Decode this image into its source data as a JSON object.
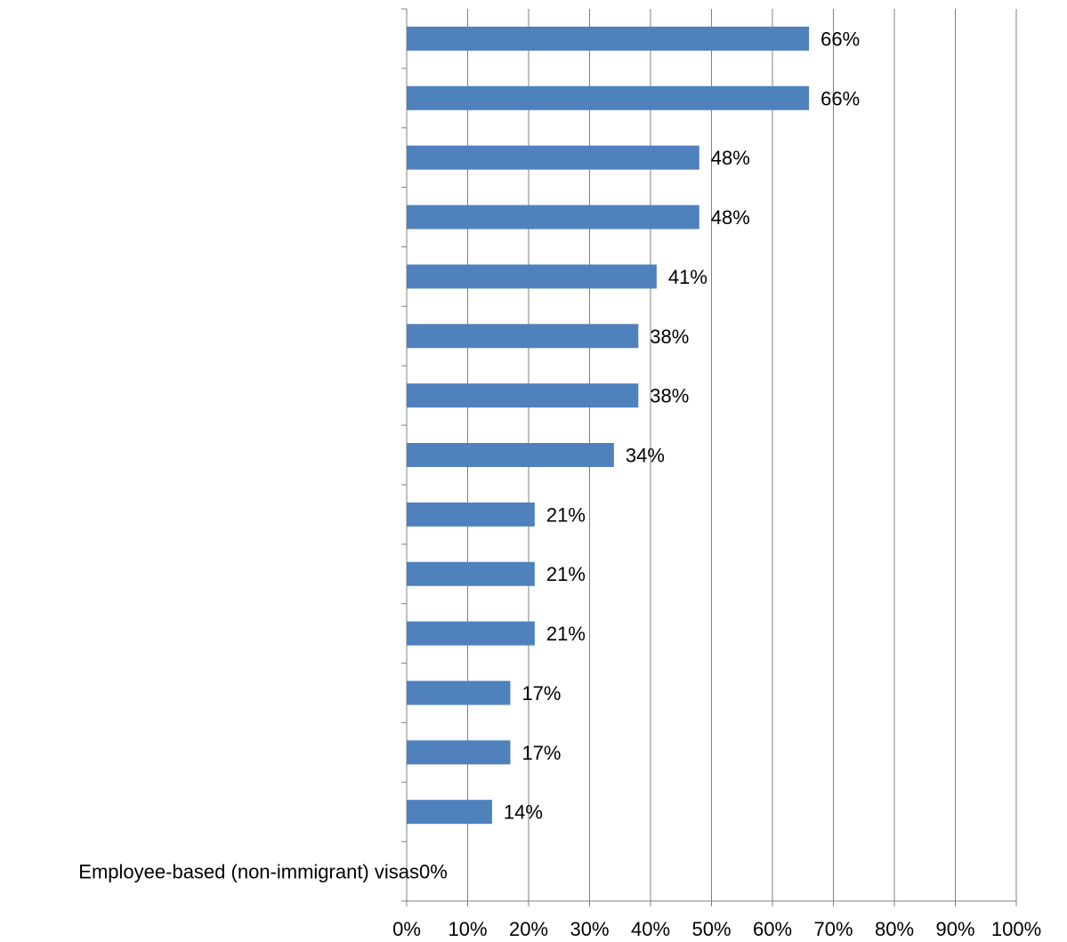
{
  "chart_data": {
    "type": "bar",
    "orientation": "horizontal",
    "title": "",
    "xlabel": "",
    "ylabel": "",
    "xlim": [
      0,
      100
    ],
    "x_ticks": [
      0,
      10,
      20,
      30,
      40,
      50,
      60,
      70,
      80,
      90,
      100
    ],
    "x_tick_labels": [
      "0%",
      "10%",
      "20%",
      "30%",
      "40%",
      "50%",
      "60%",
      "70%",
      "80%",
      "90%",
      "100%"
    ],
    "grid": "vertical",
    "legend": "none",
    "categories": [
      "",
      "",
      "",
      "",
      "",
      "",
      "",
      "",
      "",
      "",
      "",
      "",
      "",
      "",
      "Employee-based (non-immigrant) visas"
    ],
    "values": [
      66,
      66,
      48,
      48,
      41,
      38,
      38,
      34,
      21,
      21,
      21,
      17,
      17,
      14,
      0
    ],
    "data_labels": [
      "66%",
      "66%",
      "48%",
      "48%",
      "41%",
      "38%",
      "38%",
      "34%",
      "21%",
      "21%",
      "21%",
      "17%",
      "17%",
      "14%",
      "0%"
    ],
    "colors": {
      "bar": "#4F81BD",
      "grid": "#808080",
      "axis": "#808080",
      "text": "#000000"
    }
  }
}
